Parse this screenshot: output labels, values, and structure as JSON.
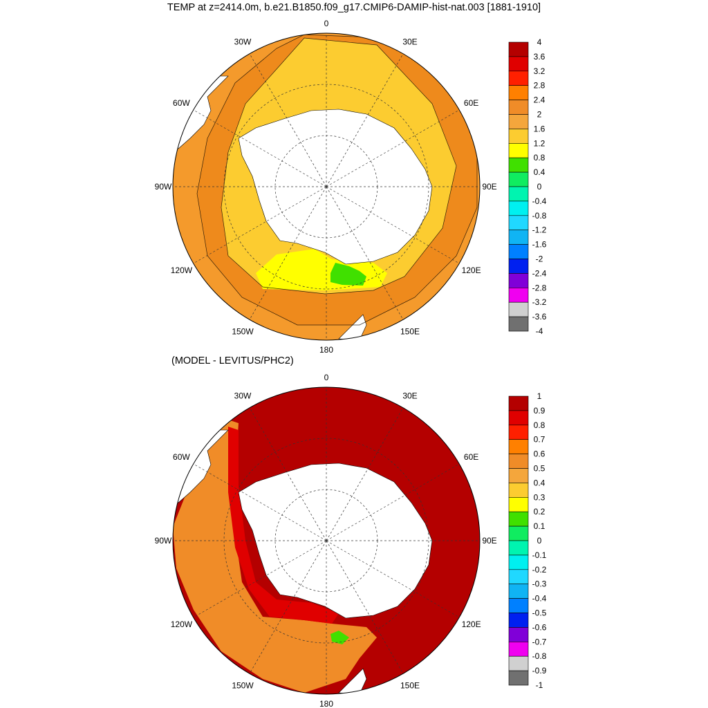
{
  "title": "TEMP at z=2414.0m, b.e21.B1850.f09_g17.CMIP6-DAMIP-hist-nat.003 [1881-1910]",
  "subtitle": "(MODEL - LEVITUS/PHC2)",
  "longitude_labels": [
    "0",
    "30E",
    "60E",
    "90E",
    "120E",
    "150E",
    "180",
    "150W",
    "120W",
    "90W",
    "60W",
    "30W"
  ],
  "top_panel": {
    "colorbar_labels": [
      "4",
      "3.6",
      "3.2",
      "2.8",
      "2.4",
      "2",
      "1.6",
      "1.2",
      "0.8",
      "0.4",
      "0",
      "-0.4",
      "-0.8",
      "-1.2",
      "-1.6",
      "-2",
      "-2.4",
      "-2.8",
      "-3.2",
      "-3.6",
      "-4"
    ],
    "colorbar_colors": [
      "#b40000",
      "#e00000",
      "#ff2000",
      "#ff8000",
      "#f08c28",
      "#f4a63c",
      "#fccc30",
      "#ffff00",
      "#40e000",
      "#10ec60",
      "#00f4b0",
      "#00f0f0",
      "#20d8ff",
      "#10b4f4",
      "#0080ff",
      "#0020f0",
      "#8000d8",
      "#f000f0",
      "#d0d0d0",
      "#707070"
    ]
  },
  "bottom_panel": {
    "colorbar_labels": [
      "1",
      "0.9",
      "0.8",
      "0.7",
      "0.6",
      "0.5",
      "0.4",
      "0.3",
      "0.2",
      "0.1",
      "0",
      "-0.1",
      "-0.2",
      "-0.3",
      "-0.4",
      "-0.5",
      "-0.6",
      "-0.7",
      "-0.8",
      "-0.9",
      "-1"
    ],
    "colorbar_colors": [
      "#b40000",
      "#e00000",
      "#ff2000",
      "#ff8000",
      "#f08c28",
      "#f4a63c",
      "#fccc30",
      "#ffff00",
      "#40e000",
      "#10ec60",
      "#00f4b0",
      "#00f0f0",
      "#20d8ff",
      "#10b4f4",
      "#0080ff",
      "#0020f0",
      "#8000d8",
      "#f000f0",
      "#d0d0d0",
      "#707070"
    ]
  },
  "colors": {
    "top_ocean_main": "#f49a2c",
    "top_ocean_inner": "#fccc30",
    "top_warm_band": "#ee8a1c",
    "top_yellow": "#ffff00",
    "top_green": "#40e000",
    "bottom_ocean_main": "#b40000",
    "bottom_red": "#e00000",
    "bottom_orange": "#f08c28",
    "land": "#ffffff"
  }
}
